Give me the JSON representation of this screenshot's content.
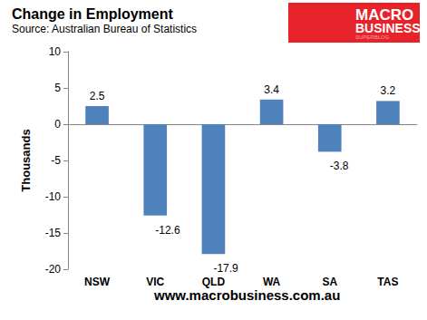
{
  "chart_data": {
    "type": "bar",
    "title": "Change in Employment",
    "subtitle": "Source: Australian Bureau of Statistics",
    "y_label": "Thousands",
    "categories": [
      "NSW",
      "VIC",
      "QLD",
      "WA",
      "SA",
      "TAS"
    ],
    "values": [
      2.5,
      -12.6,
      -17.9,
      3.4,
      -3.8,
      3.2
    ],
    "color": "#4f81bd",
    "ylim": [
      -20,
      10
    ],
    "yticks": [
      -20,
      -15,
      -10,
      -5,
      0,
      5,
      10
    ],
    "grid": false,
    "data_labels": true,
    "logo": [
      "MACRO",
      "BUSINESS",
      "SUPERBLOG"
    ],
    "footer": "www.macrobusiness.com.au"
  }
}
